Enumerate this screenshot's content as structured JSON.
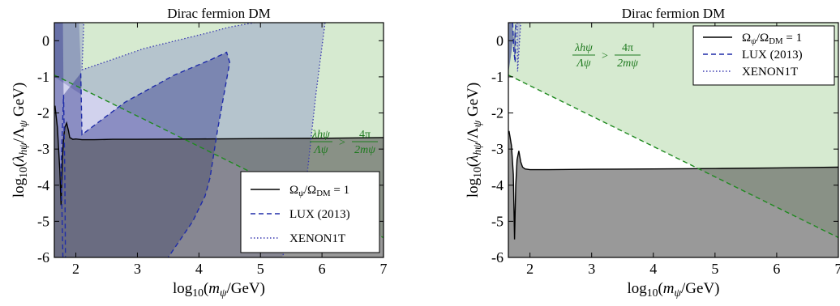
{
  "chart_data": [
    {
      "type": "line",
      "title": "Dirac fermion DM",
      "xlabel": "log₁₀(m_ψ/GeV)",
      "ylabel": "log₁₀(λ_hψ/Λ_ψ GeV)",
      "xlim": [
        1.65,
        7
      ],
      "ylim": [
        -6,
        0.5
      ],
      "xticks": [
        "2",
        "3",
        "4",
        "5",
        "6",
        "7"
      ],
      "yticks": [
        "0",
        "-1",
        "-2",
        "-3",
        "-4",
        "-5",
        "-6"
      ],
      "annotation": {
        "lhs_num": "λhψ",
        "lhs_den": "Λψ",
        "op": ">",
        "rhs_num": "4π",
        "rhs_den": "2mψ"
      },
      "legend": {
        "placement": "lower-right",
        "entries": [
          {
            "label": "Ω_ψ/Ω_DM = 1",
            "style": "solid",
            "color": "#000000"
          },
          {
            "label": "LUX (2013)",
            "style": "dashed",
            "color": "#1f2ca8"
          },
          {
            "label": "XENON1T",
            "style": "dotted",
            "color": "#3a3ab0"
          }
        ]
      },
      "series": [
        {
          "name": "Ω_ψ/Ω_DM = 1",
          "style": "solid",
          "x": [
            1.66,
            1.7,
            1.74,
            1.76,
            1.78,
            1.8,
            1.82,
            1.85,
            1.88,
            1.9,
            1.95,
            2.0,
            2.1,
            2.3,
            2.6,
            3,
            4,
            5,
            6,
            7
          ],
          "y": [
            -1.8,
            -2.4,
            -3.6,
            -4.55,
            -3.3,
            -2.7,
            -2.4,
            -2.28,
            -2.5,
            -2.68,
            -2.73,
            -2.72,
            -2.74,
            -2.74,
            -2.73,
            -2.73,
            -2.72,
            -2.71,
            -2.7,
            -2.68
          ]
        },
        {
          "name": "perturbativity bound",
          "style": "dashed",
          "color": "#1f8a1f",
          "x": [
            1.65,
            7
          ],
          "y": [
            -0.95,
            -5.45
          ]
        },
        {
          "name": "LUX (2013)",
          "style": "dashed",
          "x": [
            1.79,
            1.76,
            1.8,
            1.82,
            1.83
          ],
          "y": [
            -6,
            -3.5,
            -1.5,
            -3.6,
            -6
          ]
        },
        {
          "name": "LUX (2013)",
          "style": "dashed",
          "x": [
            2.08,
            2.1,
            2.8,
            3.6,
            4.2,
            4.45,
            4.5,
            4.3,
            4.18,
            4.1,
            3.9,
            3.5
          ],
          "y": [
            -0.9,
            -2.6,
            -1.7,
            -0.95,
            -0.52,
            -0.32,
            -0.6,
            -2.5,
            -3.8,
            -4.3,
            -5.0,
            -6.0
          ]
        },
        {
          "name": "XENON1T",
          "style": "dotted",
          "x": [
            2.05,
            2.13,
            2.1,
            2.2,
            3.1,
            4.1,
            4.5,
            4.9
          ],
          "y": [
            0.5,
            0.5,
            -0.8,
            -0.75,
            -0.22,
            0.2,
            0.38,
            0.5
          ]
        },
        {
          "name": "XENON1T",
          "style": "dotted",
          "x": [
            6.05,
            5.9,
            5.72,
            5.55,
            5.35
          ],
          "y": [
            0.5,
            -1.5,
            -4.3,
            -5.2,
            -6.0
          ]
        }
      ]
    },
    {
      "type": "line",
      "title": "Dirac fermion DM",
      "xlabel": "log₁₀(m_ψ/GeV)",
      "ylabel": "log₁₀(λ_hψ/Λ_ψ GeV)",
      "xlim": [
        1.65,
        7
      ],
      "ylim": [
        -6,
        0.5
      ],
      "xticks": [
        "2",
        "3",
        "4",
        "5",
        "6",
        "7"
      ],
      "yticks": [
        "0",
        "-1",
        "-2",
        "-3",
        "-4",
        "-5",
        "-6"
      ],
      "annotation": {
        "lhs_num": "λhψ",
        "lhs_den": "Λψ",
        "op": ">",
        "rhs_num": "4π",
        "rhs_den": "2mψ"
      },
      "legend": {
        "placement": "top-right",
        "entries": [
          {
            "label": "Ω_ψ/Ω_DM = 1",
            "style": "solid",
            "color": "#000000"
          },
          {
            "label": "LUX (2013)",
            "style": "dashed",
            "color": "#1f2ca8"
          },
          {
            "label": "XENON1T",
            "style": "dotted",
            "color": "#3a3ab0"
          }
        ]
      },
      "series": [
        {
          "name": "Ω_ψ/Ω_DM = 1",
          "style": "solid",
          "x": [
            1.66,
            1.7,
            1.73,
            1.75,
            1.77,
            1.79,
            1.82,
            1.85,
            1.88,
            1.92,
            2.0,
            2.3,
            3,
            4,
            5,
            6,
            7
          ],
          "y": [
            -2.5,
            -2.9,
            -3.7,
            -5.5,
            -4.0,
            -3.3,
            -3.05,
            -3.35,
            -3.5,
            -3.55,
            -3.57,
            -3.57,
            -3.56,
            -3.55,
            -3.54,
            -3.52,
            -3.5
          ]
        },
        {
          "name": "perturbativity bound",
          "style": "dashed",
          "color": "#1f8a1f",
          "x": [
            1.65,
            7
          ],
          "y": [
            -0.95,
            -5.45
          ]
        },
        {
          "name": "LUX (2013)",
          "style": "dashed",
          "x": [
            1.72,
            1.74,
            1.76,
            1.77
          ],
          "y": [
            0.5,
            -0.3,
            -0.6,
            0.5
          ]
        },
        {
          "name": "XENON1T",
          "style": "dotted",
          "x": [
            1.79,
            1.8,
            1.85
          ],
          "y": [
            0.5,
            -0.85,
            0.5
          ]
        }
      ]
    }
  ]
}
